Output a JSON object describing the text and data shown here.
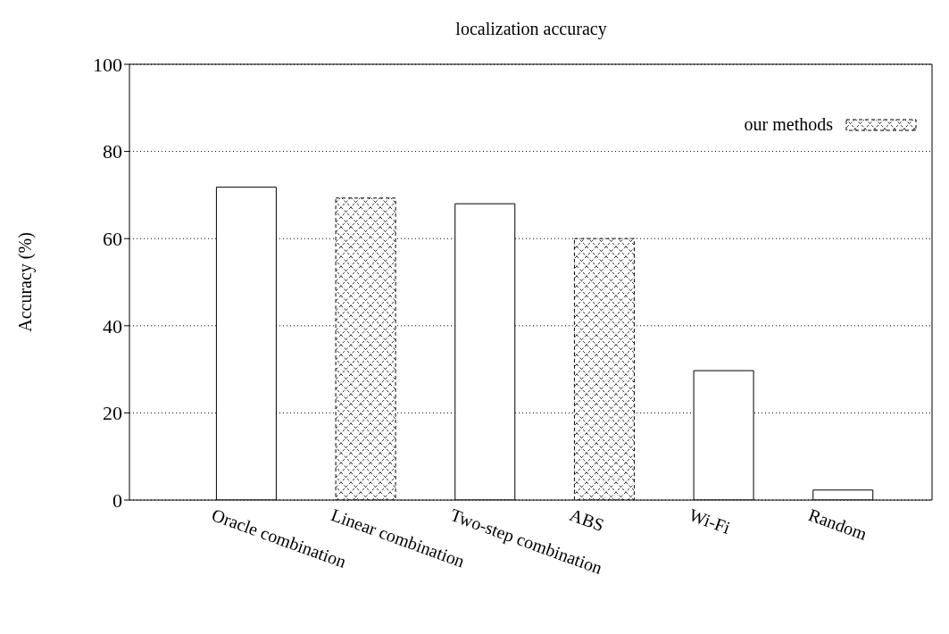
{
  "chart_data": {
    "type": "bar",
    "title": "localization accuracy",
    "ylabel": "Accuracy (%)",
    "categories": [
      "Oracle combination",
      "Linear combination",
      "Two-step combination",
      "ABS",
      "Wi-Fi",
      "Random"
    ],
    "series": [
      {
        "color": "#ffffff",
        "values": [
          71.8,
          null,
          68.0,
          null,
          29.7,
          2.3
        ]
      },
      {
        "name": "our methods",
        "color": "#000000",
        "values": [
          null,
          69.3,
          null,
          60.0,
          null,
          null
        ]
      }
    ],
    "stacked": true,
    "ylim": [
      0,
      100
    ],
    "yticks": [
      0,
      20,
      40,
      60,
      80,
      100
    ],
    "grid": "y",
    "legend": "top right"
  }
}
